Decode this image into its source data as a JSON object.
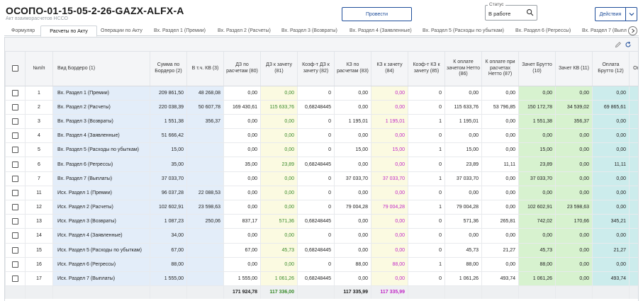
{
  "header": {
    "title": "ОСОПО-01-15-05-2-26-GAZX-ALFX-A",
    "subtitle": "Акт взаиморасчетов НССО",
    "run_button": "Провести",
    "status_label": "Статус",
    "status_value": "В работе",
    "actions_button": "Действия"
  },
  "tabs": [
    "Формуляр",
    "Расчеты по Акту",
    "Операции по Акту",
    "Вх. Раздел 1 (Премии)",
    "Вх. Раздел 2 (Расчеты)",
    "Вх. Раздел 3 (Возвраты)",
    "Вх. Раздел 4 (Заявленные)",
    "Вх. Раздел 5 (Расходы по убыткам)",
    "Вх. Раздел 6 (Регрессы)",
    "Вх. Раздел 7 (Выпл"
  ],
  "active_tab": 1,
  "table": {
    "columns": [
      "",
      "№п/п",
      "Вид Бордеро (1)",
      "Сумма по Бордеро (2)",
      "В т.ч. КВ (3)",
      "ДЗ по расчетам (80)",
      "ДЗ к зачету (81)",
      "Коэф-т ДЗ к зачету (82)",
      "КЗ по расчетам (83)",
      "КЗ к зачету (84)",
      "Коэф-т КЗ к зачету (85)",
      "К оплате зачетом Нетто (86)",
      "К оплате при расчетах Нетто (87)",
      "Зачет Брутто (10)",
      "Зачет КВ (11)",
      "Оплата Брутто (12)",
      "Оп"
    ],
    "rows": [
      [
        "1",
        "Вх. Раздел 1 (Премии)",
        "209 861,50",
        "48 268,08",
        "0,00",
        "0,00",
        "0",
        "0,00",
        "0,00",
        "0",
        "0,00",
        "0,00",
        "0,00",
        "0,00",
        "0,00",
        ""
      ],
      [
        "2",
        "Вх. Раздел 2 (Расчеты)",
        "220 038,39",
        "50 607,78",
        "169 430,61",
        "115 633,76",
        "0,68248445",
        "0,00",
        "0,00",
        "0",
        "115 633,76",
        "53 796,85",
        "150 172,78",
        "34 539,02",
        "69 865,61",
        "1"
      ],
      [
        "3",
        "Вх. Раздел 3 (Возвраты)",
        "1 551,38",
        "356,37",
        "0,00",
        "0,00",
        "0",
        "1 195,01",
        "1 195,01",
        "1",
        "1 195,01",
        "0,00",
        "1 551,38",
        "356,37",
        "0,00",
        ""
      ],
      [
        "4",
        "Вх. Раздел 4 (Заявленные)",
        "51 666,42",
        "",
        "0,00",
        "0,00",
        "0",
        "0,00",
        "0,00",
        "0",
        "0,00",
        "0,00",
        "0,00",
        "0,00",
        "0,00",
        ""
      ],
      [
        "5",
        "Вх. Раздел 5 (Расходы по убыткам)",
        "15,00",
        "",
        "0,00",
        "0,00",
        "0",
        "15,00",
        "15,00",
        "1",
        "15,00",
        "0,00",
        "15,00",
        "0,00",
        "0,00",
        ""
      ],
      [
        "6",
        "Вх. Раздел 6 (Регрессы)",
        "35,00",
        "",
        "35,00",
        "23,89",
        "0,68248445",
        "0,00",
        "0,00",
        "0",
        "23,89",
        "11,11",
        "23,89",
        "0,00",
        "11,11",
        ""
      ],
      [
        "7",
        "Вх. Раздел 7 (Выплаты)",
        "37 033,70",
        "",
        "0,00",
        "0,00",
        "0",
        "37 033,70",
        "37 033,70",
        "1",
        "37 033,70",
        "0,00",
        "37 033,70",
        "0,00",
        "0,00",
        ""
      ],
      [
        "11",
        "Исх. Раздел 1 (Премии)",
        "96 037,28",
        "22 088,53",
        "0,00",
        "0,00",
        "0",
        "0,00",
        "0,00",
        "0",
        "0,00",
        "0,00",
        "0,00",
        "0,00",
        "0,00",
        ""
      ],
      [
        "12",
        "Исх. Раздел 2 (Расчеты)",
        "102 602,91",
        "23 598,63",
        "0,00",
        "0,00",
        "0",
        "79 004,28",
        "79 004,28",
        "1",
        "79 004,28",
        "0,00",
        "102 602,91",
        "23 598,63",
        "0,00",
        ""
      ],
      [
        "13",
        "Исх. Раздел 3 (Возвраты)",
        "1 087,23",
        "250,06",
        "837,17",
        "571,36",
        "0,68248445",
        "0,00",
        "0,00",
        "0",
        "571,36",
        "265,81",
        "742,02",
        "170,66",
        "345,21",
        ""
      ],
      [
        "14",
        "Исх. Раздел 4 (Заявленные)",
        "34,00",
        "",
        "0,00",
        "0,00",
        "0",
        "0,00",
        "0,00",
        "0",
        "0,00",
        "0,00",
        "0,00",
        "0,00",
        "0,00",
        ""
      ],
      [
        "15",
        "Исх. Раздел 5 (Расходы по убыткам)",
        "67,00",
        "",
        "67,00",
        "45,73",
        "0,68248445",
        "0,00",
        "0,00",
        "0",
        "45,73",
        "21,27",
        "45,73",
        "0,00",
        "21,27",
        ""
      ],
      [
        "16",
        "Исх. Раздел 6 (Регрессы)",
        "88,00",
        "",
        "0,00",
        "0,00",
        "0",
        "88,00",
        "88,00",
        "1",
        "88,00",
        "0,00",
        "88,00",
        "0,00",
        "0,00",
        ""
      ],
      [
        "17",
        "Исх. Раздел 7 (Выплаты)",
        "1 555,00",
        "",
        "1 555,00",
        "1 061,26",
        "0,68248445",
        "0,00",
        "0,00",
        "0",
        "1 061,26",
        "493,74",
        "1 061,26",
        "0,00",
        "493,74",
        ""
      ]
    ],
    "totals": [
      "",
      "",
      "",
      "",
      "",
      "171 924,78",
      "117 336,00",
      "",
      "117 335,99",
      "117 335,99",
      "",
      "",
      "",
      "",
      "",
      "",
      ""
    ]
  },
  "icons": [
    "search-icon",
    "chevron-down-icon",
    "chevron-right-icon",
    "edit-icon",
    "refresh-icon"
  ],
  "colors": {
    "accent": "#1f4e9a",
    "blue_column": "#e3edf9",
    "yellow_column": "#fbfae1",
    "green_column": "#d7f2cf",
    "teal_column": "#ccecec",
    "green_text": "#3a8a2a",
    "magenta_text": "#c229c6"
  }
}
